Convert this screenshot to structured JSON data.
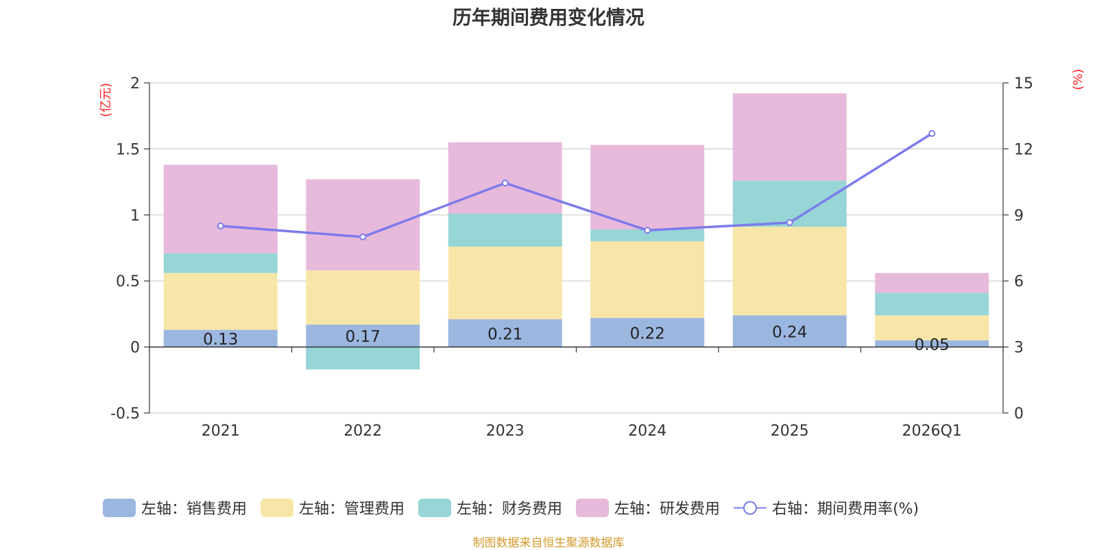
{
  "chart_data": {
    "type": "bar",
    "title": "历年期间费用变化情况",
    "categories": [
      "2021",
      "2022",
      "2023",
      "2024",
      "2025",
      "2026Q1"
    ],
    "left_axis": {
      "unit_label": "(亿元)",
      "ticks": [
        "2",
        "1.5",
        "1",
        "0.5",
        "0",
        "-0.5"
      ],
      "ylim": [
        -0.5,
        2
      ]
    },
    "right_axis": {
      "unit_label": "(%)",
      "ticks": [
        "15",
        "12",
        "9",
        "6",
        "3",
        "0"
      ],
      "ylim": [
        0,
        15
      ]
    },
    "series": [
      {
        "name": "左轴：销售费用",
        "color": "#9bb7e0",
        "values": [
          0.13,
          0.17,
          0.21,
          0.22,
          0.24,
          0.05
        ],
        "labels": [
          "0.13",
          "0.17",
          "0.21",
          "0.22",
          "0.24",
          "0.05"
        ]
      },
      {
        "name": "左轴：管理费用",
        "color": "#f8e6a8",
        "values": [
          0.43,
          0.41,
          0.55,
          0.58,
          0.67,
          0.19
        ]
      },
      {
        "name": "左轴：财务费用",
        "color": "#97d5d6",
        "values": [
          0.15,
          -0.17,
          0.25,
          0.09,
          0.35,
          0.17
        ]
      },
      {
        "name": "左轴：研发费用",
        "color": "#e7b9da",
        "values": [
          0.67,
          0.69,
          0.54,
          0.64,
          0.66,
          0.15
        ]
      }
    ],
    "line_series": {
      "name": "右轴：期间费用率(%)",
      "color": "#7b7bea",
      "values": [
        8.5,
        8.0,
        10.45,
        8.3,
        8.65,
        12.7
      ]
    }
  },
  "footer": {
    "source": "制图数据来自恒生聚源数据库",
    "source_color": "#d29a2c"
  }
}
